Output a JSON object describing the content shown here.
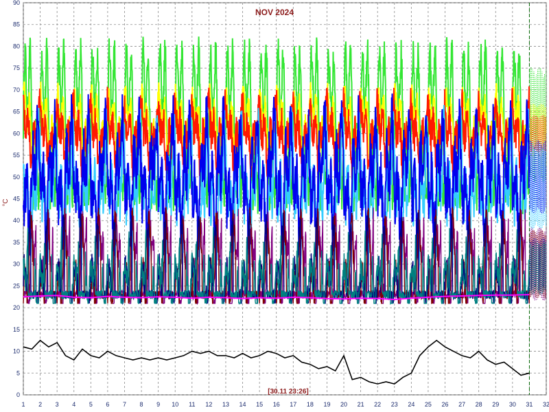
{
  "chart_data": {
    "type": "line",
    "title": "NOV 2024",
    "ylabel": "°C",
    "timestamp": "[30.11 23:26]",
    "xlim": [
      1,
      32
    ],
    "ylim": [
      0,
      90
    ],
    "x_ticks": [
      1,
      2,
      3,
      4,
      5,
      6,
      7,
      8,
      9,
      10,
      11,
      12,
      13,
      14,
      15,
      16,
      17,
      18,
      19,
      20,
      21,
      22,
      23,
      24,
      25,
      26,
      27,
      28,
      29,
      30,
      31,
      32
    ],
    "y_ticks": [
      0,
      5,
      10,
      15,
      20,
      25,
      30,
      35,
      40,
      45,
      50,
      55,
      60,
      65,
      70,
      75,
      80,
      85,
      90
    ],
    "grid": true,
    "series": [
      {
        "color": "#33e633",
        "base": 62,
        "amp": 22,
        "noise": 4
      },
      {
        "color": "#ffff00",
        "base": 62,
        "amp": 8,
        "noise": 3
      },
      {
        "color": "#ff1a00",
        "base": 60,
        "amp": 7,
        "noise": 4
      },
      {
        "color": "#33ccff",
        "base": 47,
        "amp": 15,
        "noise": 5
      },
      {
        "color": "#0000ee",
        "base": 50,
        "amp": 14,
        "noise": 6
      },
      {
        "color": "#800080",
        "base": 30,
        "amp": 14,
        "noise": 4
      },
      {
        "color": "#800000",
        "base": 30,
        "amp": 13,
        "noise": 3
      },
      {
        "color": "#000080",
        "base": 30,
        "amp": 10,
        "noise": 3
      },
      {
        "color": "#008080",
        "base": 29,
        "amp": 10,
        "noise": 3
      }
    ],
    "floor_series": {
      "color": "#ff00ff",
      "values": [
        22.5,
        22.7,
        22.8,
        22.4,
        22.3,
        22.6,
        22.4,
        22.3,
        22.5,
        22.4,
        22.2,
        22.4,
        22.3,
        22.1,
        22.3,
        22.2,
        22.4,
        22.3,
        22.1,
        22.0,
        22.2,
        22.1,
        21.9,
        22.2,
        22.4,
        22.6,
        22.7,
        22.8,
        22.9,
        22.9,
        23.0
      ]
    },
    "outdoor_series": {
      "color": "#000000",
      "x": [
        1,
        1.5,
        2,
        2.5,
        3,
        3.5,
        4,
        4.5,
        5,
        5.5,
        6,
        6.5,
        7,
        7.5,
        8,
        8.5,
        9,
        9.5,
        10,
        10.5,
        11,
        11.5,
        12,
        12.5,
        13,
        13.5,
        14,
        14.5,
        15,
        15.5,
        16,
        16.5,
        17,
        17.5,
        18,
        18.5,
        19,
        19.5,
        20,
        20.5,
        21,
        21.5,
        22,
        22.5,
        23,
        23.5,
        24,
        24.5,
        25,
        25.5,
        26,
        26.5,
        27,
        27.5,
        28,
        28.5,
        29,
        29.5,
        30,
        30.5,
        31
      ],
      "values": [
        11,
        10.5,
        12.5,
        11,
        12,
        9,
        8,
        10.5,
        9,
        8.5,
        10,
        9,
        8.5,
        8,
        8.5,
        8,
        8.5,
        8,
        8.5,
        9,
        10,
        9.5,
        10,
        9,
        9,
        8.5,
        9.5,
        8.5,
        9,
        10,
        9.5,
        8.5,
        9,
        7.5,
        7,
        6,
        6.5,
        5.5,
        9,
        3.5,
        4,
        3,
        2.5,
        3,
        2.5,
        4,
        5,
        9,
        11,
        12.5,
        11,
        10,
        9,
        8.5,
        10,
        8,
        7,
        7.5,
        6,
        4.5,
        5
      ]
    }
  }
}
